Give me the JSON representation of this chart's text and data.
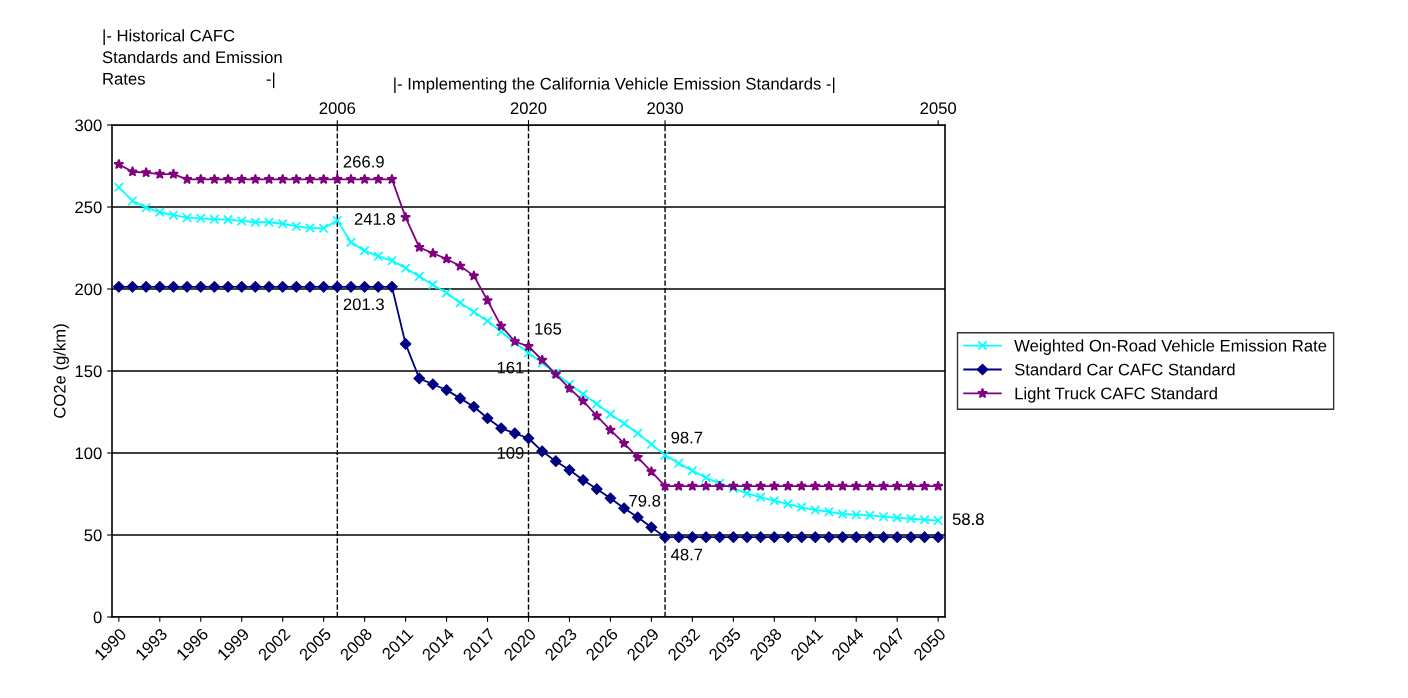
{
  "chart_data": {
    "type": "line",
    "ylabel": "CO2e (g/km)",
    "x": [
      1990,
      1991,
      1992,
      1993,
      1994,
      1995,
      1996,
      1997,
      1998,
      1999,
      2000,
      2001,
      2002,
      2003,
      2004,
      2005,
      2006,
      2007,
      2008,
      2009,
      2010,
      2011,
      2012,
      2013,
      2014,
      2015,
      2016,
      2017,
      2018,
      2019,
      2020,
      2021,
      2022,
      2023,
      2024,
      2025,
      2026,
      2027,
      2028,
      2029,
      2030,
      2031,
      2032,
      2033,
      2034,
      2035,
      2036,
      2037,
      2038,
      2039,
      2040,
      2041,
      2042,
      2043,
      2044,
      2045,
      2046,
      2047,
      2048,
      2049,
      2050
    ],
    "series": [
      {
        "name": "Weighted On-Road Vehicle Emission Rate",
        "color": "#00ffff",
        "marker": "cross",
        "values": [
          262,
          253.7,
          249.6,
          246.8,
          245,
          243.5,
          243.1,
          242.5,
          242.3,
          241.5,
          240.7,
          240.7,
          239.8,
          238.2,
          237.2,
          237,
          241.8,
          228.5,
          223.4,
          219.9,
          217.3,
          212.6,
          207.7,
          202.6,
          197.6,
          191.6,
          186,
          180.5,
          174,
          167.3,
          161,
          155,
          148.6,
          141.9,
          136,
          129.9,
          123.6,
          118,
          112,
          105.3,
          98.7,
          93.7,
          89.2,
          84.9,
          81.5,
          78.5,
          75.4,
          73,
          70.9,
          68.9,
          66.9,
          65.2,
          64.2,
          62.8,
          62.4,
          62,
          61.2,
          60.5,
          59.9,
          59.3,
          58.8
        ]
      },
      {
        "name": "Standard Car CAFC Standard",
        "color": "#000080",
        "marker": "diamond",
        "values": [
          201.3,
          201.3,
          201.3,
          201.3,
          201.3,
          201.3,
          201.3,
          201.3,
          201.3,
          201.3,
          201.3,
          201.3,
          201.3,
          201.3,
          201.3,
          201.3,
          201.3,
          201.3,
          201.3,
          201.3,
          201.3,
          166.5,
          145.5,
          141.9,
          138.4,
          133.3,
          128.2,
          121.2,
          115.1,
          112,
          109,
          101,
          95,
          89.6,
          83.5,
          78,
          72.4,
          66.3,
          60.8,
          54.7,
          48.7,
          48.7,
          48.7,
          48.7,
          48.7,
          48.7,
          48.7,
          48.7,
          48.7,
          48.7,
          48.7,
          48.7,
          48.7,
          48.7,
          48.7,
          48.7,
          48.7,
          48.7,
          48.7,
          48.7,
          48.7
        ]
      },
      {
        "name": "Light Truck CAFC Standard",
        "color": "#800080",
        "marker": "star",
        "values": [
          276,
          271.5,
          271,
          270,
          270,
          266.9,
          266.9,
          266.9,
          266.9,
          266.9,
          266.9,
          266.9,
          266.9,
          266.9,
          266.9,
          266.9,
          266.9,
          266.9,
          266.9,
          266.9,
          266.9,
          243.7,
          225.4,
          221.8,
          218.3,
          214,
          208,
          193,
          177.4,
          168,
          165,
          156.7,
          148,
          139.4,
          131.7,
          122.6,
          114,
          105.9,
          97.4,
          88.6,
          79.8,
          79.8,
          79.8,
          79.8,
          79.8,
          79.8,
          79.8,
          79.8,
          79.8,
          79.8,
          79.8,
          79.8,
          79.8,
          79.8,
          79.8,
          79.8,
          79.8,
          79.8,
          79.8,
          79.8,
          79.8
        ]
      }
    ],
    "xlim": [
      1989.5,
      2050.5
    ],
    "xticks": [
      1990,
      1993,
      1996,
      1999,
      2002,
      2005,
      2008,
      2011,
      2014,
      2017,
      2020,
      2023,
      2026,
      2029,
      2032,
      2035,
      2038,
      2041,
      2044,
      2047,
      2050
    ],
    "x2lim": [
      1989.5,
      2050.5
    ],
    "x2ticks": [
      2006,
      2020,
      2030,
      2050
    ],
    "ylim": [
      0,
      300
    ],
    "yticks": [
      0,
      50,
      100,
      150,
      200,
      250,
      300
    ],
    "grid": "y",
    "legend": "right",
    "line_style": "solid",
    "ref_lines": [
      {
        "axis": "x",
        "value": 2006,
        "line_style": "dashed",
        "color": "#000000"
      },
      {
        "axis": "x",
        "value": 2020,
        "line_style": "dashed",
        "color": "#000000"
      },
      {
        "axis": "x",
        "value": 2030,
        "line_style": "dashed",
        "color": "#000000"
      }
    ],
    "annotations": [
      "|- Historical CAFC\nStandards and Emission\nRates                          -|",
      "|- Implementing the California Vehicle Emission Standards -|",
      {
        "text": "266.9",
        "x": 2006,
        "y": 266.9
      },
      {
        "text": "241.8",
        "x": 2006,
        "y": 241.8
      },
      {
        "text": "201.3",
        "x": 2006,
        "y": 201.3
      },
      {
        "text": "165",
        "x": 2020,
        "y": 165
      },
      {
        "text": "161",
        "x": 2020,
        "y": 161
      },
      {
        "text": "109",
        "x": 2020,
        "y": 109
      },
      {
        "text": "98.7",
        "x": 2030,
        "y": 98.7
      },
      {
        "text": "79.8",
        "x": 2030,
        "y": 79.8
      },
      {
        "text": "48.7",
        "x": 2030,
        "y": 48.7
      },
      {
        "text": "58.8",
        "x": 2050,
        "y": 58.8
      }
    ]
  }
}
